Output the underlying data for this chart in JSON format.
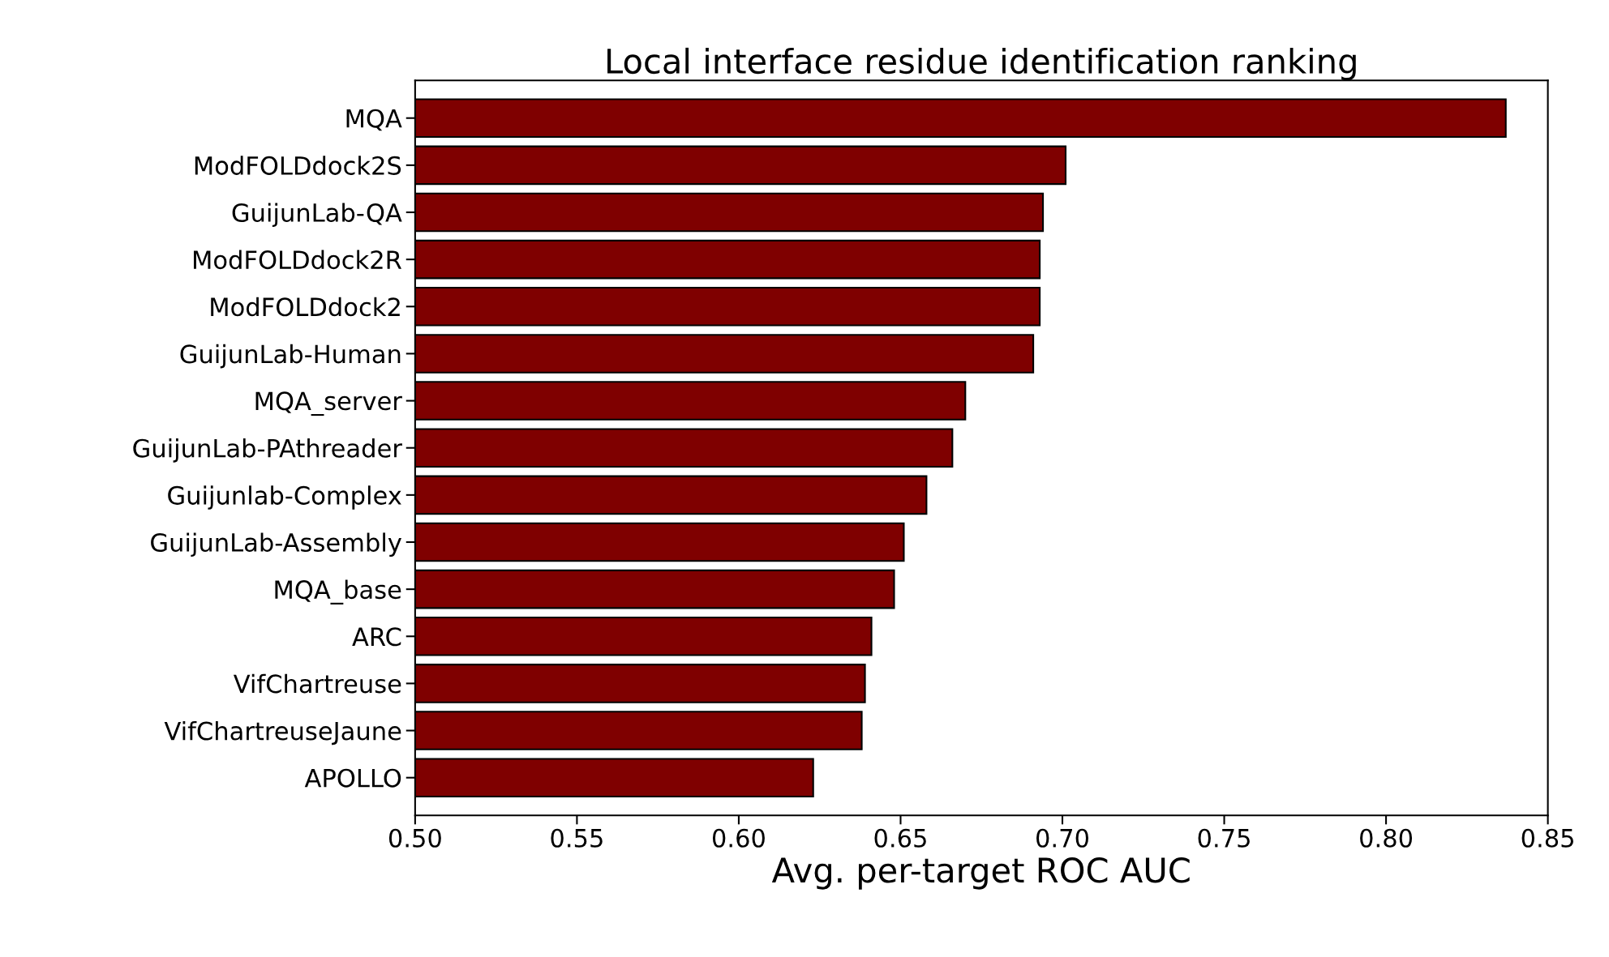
{
  "chart_data": {
    "type": "bar",
    "orientation": "horizontal",
    "title": "Local interface residue identification ranking",
    "xlabel": "Avg. per-target ROC AUC",
    "categories": [
      "MQA",
      "ModFOLDdock2S",
      "GuijunLab-QA",
      "ModFOLDdock2R",
      "ModFOLDdock2",
      "GuijunLab-Human",
      "MQA_server",
      "GuijunLab-PAthreader",
      "Guijunlab-Complex",
      "GuijunLab-Assembly",
      "MQA_base",
      "ARC",
      "VifChartreuse",
      "VifChartreuseJaune",
      "APOLLO"
    ],
    "values": [
      0.837,
      0.701,
      0.694,
      0.693,
      0.693,
      0.691,
      0.67,
      0.666,
      0.658,
      0.651,
      0.648,
      0.641,
      0.639,
      0.638,
      0.623
    ],
    "color": "#7f0000",
    "xlim": [
      0.5,
      0.85
    ],
    "xticks": [
      {
        "value": 0.5,
        "label": "0.50"
      },
      0.55,
      {
        "value": 0.6,
        "label": "0.60"
      },
      0.65,
      {
        "value": 0.7,
        "label": "0.70"
      },
      0.75,
      {
        "value": 0.8,
        "label": "0.80"
      },
      0.85
    ],
    "grid": false,
    "legend": false
  }
}
